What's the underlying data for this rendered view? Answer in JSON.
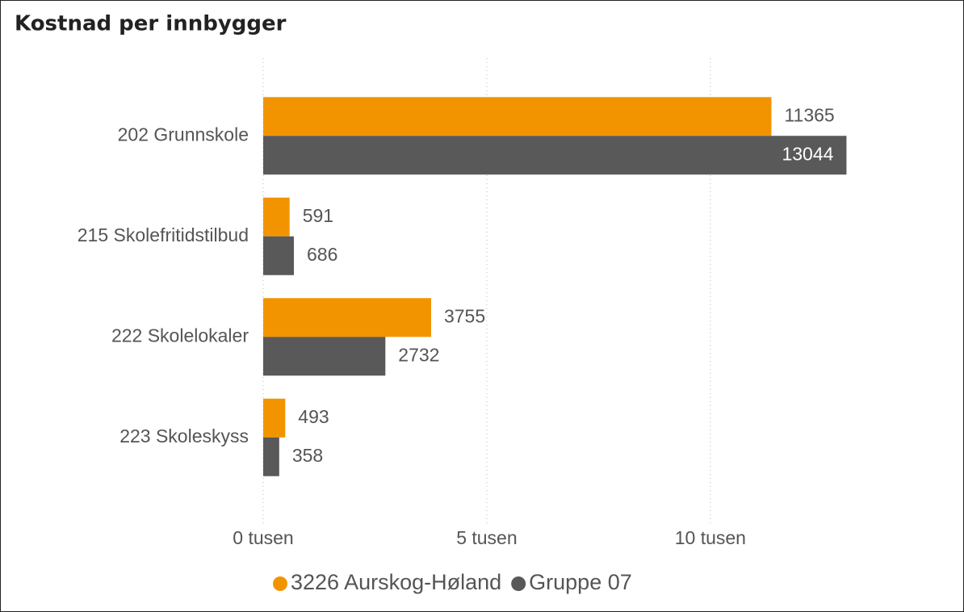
{
  "chart_data": {
    "type": "bar",
    "orientation": "horizontal",
    "title": "Kostnad per innbygger",
    "categories": [
      "202 Grunnskole",
      "215 Skolefritidstilbud",
      "222 Skolelokaler",
      "223 Skoleskyss"
    ],
    "series": [
      {
        "name": "3226 Aurskog-Høland",
        "color": "#f29400",
        "values": [
          11365,
          591,
          3755,
          493
        ]
      },
      {
        "name": "Gruppe 07",
        "color": "#595959",
        "values": [
          13044,
          686,
          2732,
          358
        ]
      }
    ],
    "xlim": [
      0,
      13000
    ],
    "xticks": [
      {
        "value": 0,
        "label": "0 tusen"
      },
      {
        "value": 5000,
        "label": "5 tusen"
      },
      {
        "value": 10000,
        "label": "10 tusen"
      }
    ],
    "grid": true,
    "legend": "bottom"
  }
}
